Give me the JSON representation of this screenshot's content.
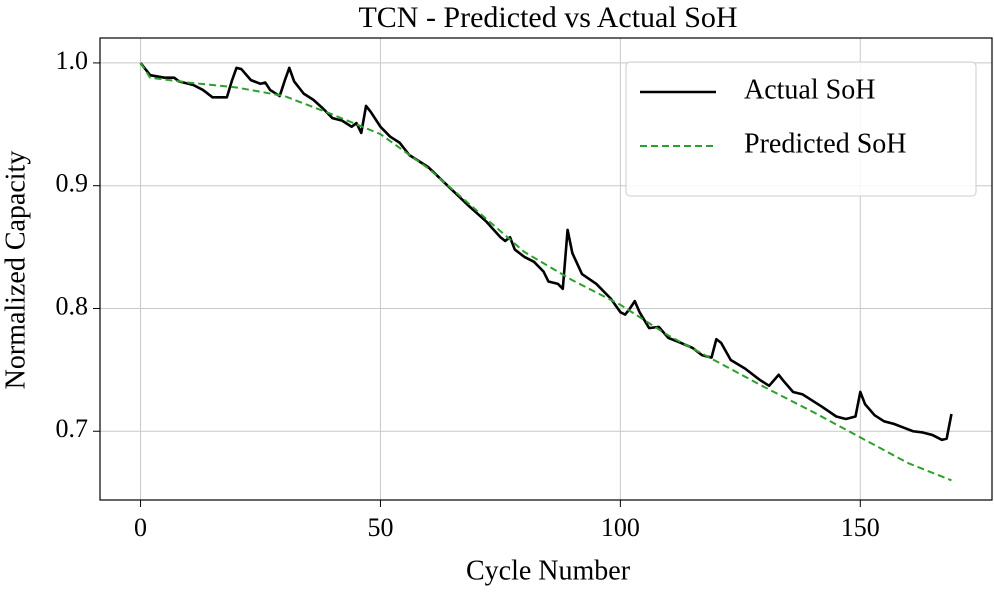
{
  "chart_data": {
    "type": "line",
    "title": "TCN - Predicted vs Actual SoH",
    "x_label": "Cycle Number",
    "y_label": "Normalized Capacity",
    "xlim": [
      -8.45,
      177.45
    ],
    "ylim": [
      0.644,
      1.0203
    ],
    "xticks": [
      0,
      50,
      100,
      150
    ],
    "yticks": [
      {
        "value": 1,
        "label": "1.0"
      },
      0.9,
      0.8,
      0.7
    ],
    "grid": true,
    "legend": "upper right",
    "series": [
      {
        "name": "Actual SoH",
        "color": "#000000",
        "style": "solid",
        "x": [
          0,
          2,
          5,
          7,
          8,
          11,
          13,
          15,
          18,
          19,
          20,
          21,
          23,
          25,
          26,
          27,
          29,
          30,
          31,
          32,
          34,
          36,
          38,
          40,
          42,
          44,
          45,
          46,
          47,
          48,
          50,
          52,
          54,
          56,
          60,
          64,
          68,
          72,
          75,
          76,
          77,
          78,
          80,
          82,
          84,
          85,
          87,
          88,
          89,
          90,
          92,
          95,
          98,
          100,
          101,
          102,
          103,
          104,
          106,
          108,
          110,
          112,
          115,
          117,
          119,
          120,
          121,
          123,
          126,
          129,
          131,
          133,
          134,
          136,
          138,
          140,
          142,
          145,
          147,
          149,
          150,
          151,
          153,
          155,
          157,
          159,
          161,
          163,
          165,
          167,
          168,
          169
        ],
        "values": [
          1.0,
          0.99,
          0.988,
          0.988,
          0.985,
          0.982,
          0.978,
          0.972,
          0.972,
          0.985,
          0.996,
          0.995,
          0.986,
          0.983,
          0.984,
          0.978,
          0.973,
          0.985,
          0.996,
          0.985,
          0.975,
          0.97,
          0.963,
          0.955,
          0.953,
          0.948,
          0.951,
          0.943,
          0.965,
          0.96,
          0.948,
          0.94,
          0.935,
          0.925,
          0.915,
          0.9,
          0.885,
          0.871,
          0.858,
          0.855,
          0.858,
          0.848,
          0.842,
          0.838,
          0.83,
          0.822,
          0.82,
          0.816,
          0.864,
          0.845,
          0.828,
          0.82,
          0.808,
          0.797,
          0.795,
          0.8,
          0.806,
          0.797,
          0.784,
          0.785,
          0.776,
          0.773,
          0.768,
          0.762,
          0.76,
          0.775,
          0.772,
          0.758,
          0.751,
          0.742,
          0.737,
          0.746,
          0.741,
          0.732,
          0.73,
          0.725,
          0.72,
          0.712,
          0.71,
          0.712,
          0.732,
          0.722,
          0.713,
          0.708,
          0.706,
          0.703,
          0.7,
          0.699,
          0.697,
          0.693,
          0.694,
          0.714
        ]
      },
      {
        "name": "Predicted SoH",
        "color": "#2ca02c",
        "style": "dashed",
        "x": [
          0,
          2,
          10,
          20,
          30,
          40,
          50,
          60,
          70,
          80,
          90,
          100,
          110,
          120,
          130,
          140,
          150,
          160,
          169
        ],
        "values": [
          1.0,
          0.988,
          0.984,
          0.98,
          0.973,
          0.958,
          0.942,
          0.914,
          0.88,
          0.846,
          0.823,
          0.803,
          0.778,
          0.757,
          0.736,
          0.716,
          0.695,
          0.674,
          0.66
        ]
      }
    ]
  }
}
